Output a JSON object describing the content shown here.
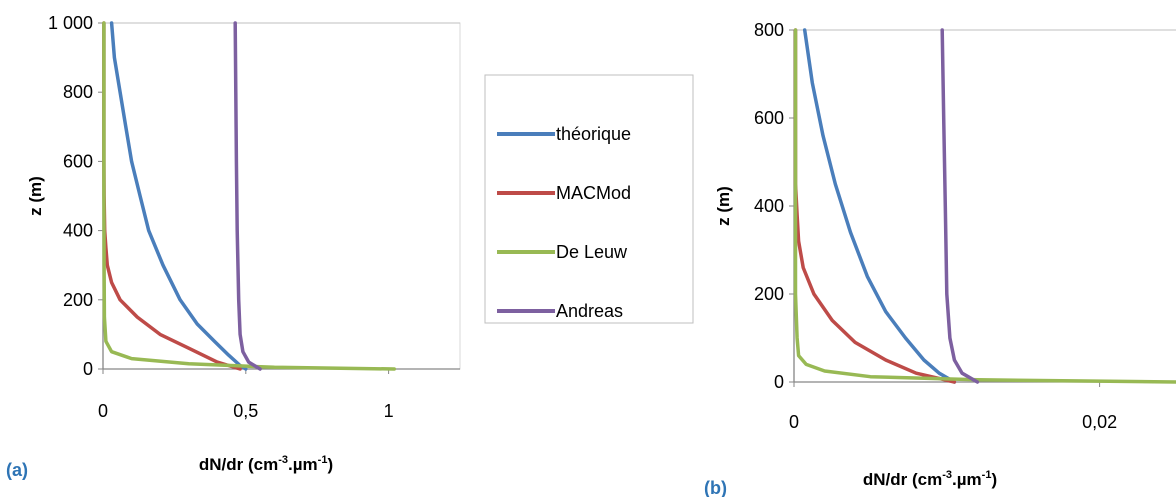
{
  "chart_data": [
    {
      "panel_label": "(a)",
      "type": "line",
      "xlabel": "dN/dr (cm-3.µm-1)",
      "ylabel": "z (m)",
      "xlim": [
        0,
        1.25
      ],
      "ylim": [
        0,
        1000
      ],
      "x_ticks": [
        0,
        0.5,
        1
      ],
      "x_tick_labels": [
        "0",
        "0,5",
        "1"
      ],
      "y_ticks": [
        0,
        200,
        400,
        600,
        800,
        1000
      ],
      "y_tick_labels": [
        "0",
        "200",
        "400",
        "600",
        "800",
        "1 000"
      ],
      "grid": "horizontal-top-only",
      "legend_position": "right",
      "series": [
        {
          "name": "théorique",
          "color": "#4a7ebb",
          "points": [
            [
              0.5,
              0
            ],
            [
              0.48,
              10
            ],
            [
              0.44,
              40
            ],
            [
              0.39,
              80
            ],
            [
              0.33,
              130
            ],
            [
              0.27,
              200
            ],
            [
              0.21,
              300
            ],
            [
              0.16,
              400
            ],
            [
              0.13,
              500
            ],
            [
              0.1,
              600
            ],
            [
              0.08,
              700
            ],
            [
              0.06,
              800
            ],
            [
              0.04,
              900
            ],
            [
              0.03,
              1000
            ]
          ]
        },
        {
          "name": "MACMod",
          "color": "#be4b48",
          "points": [
            [
              0.48,
              0
            ],
            [
              0.4,
              20
            ],
            [
              0.3,
              60
            ],
            [
              0.2,
              100
            ],
            [
              0.12,
              150
            ],
            [
              0.06,
              200
            ],
            [
              0.03,
              250
            ],
            [
              0.015,
              300
            ],
            [
              0.01,
              350
            ],
            [
              0.006,
              400
            ],
            [
              0.004,
              500
            ],
            [
              0.003,
              600
            ],
            [
              0.003,
              700
            ],
            [
              0.003,
              800
            ],
            [
              0.003,
              900
            ],
            [
              0.003,
              1000
            ]
          ]
        },
        {
          "name": "De Leuw",
          "color": "#98b954",
          "points": [
            [
              1.02,
              0
            ],
            [
              0.6,
              5
            ],
            [
              0.3,
              15
            ],
            [
              0.1,
              30
            ],
            [
              0.03,
              50
            ],
            [
              0.01,
              80
            ],
            [
              0.005,
              150
            ],
            [
              0.004,
              300
            ],
            [
              0.003,
              500
            ],
            [
              0.003,
              700
            ],
            [
              0.003,
              1000
            ]
          ]
        },
        {
          "name": "Andreas",
          "color": "#7d60a0",
          "points": [
            [
              0.55,
              0
            ],
            [
              0.51,
              20
            ],
            [
              0.49,
              50
            ],
            [
              0.48,
              100
            ],
            [
              0.475,
              200
            ],
            [
              0.47,
              400
            ],
            [
              0.467,
              600
            ],
            [
              0.465,
              800
            ],
            [
              0.463,
              1000
            ]
          ]
        }
      ]
    },
    {
      "panel_label": "(b)",
      "type": "line",
      "xlabel": "dN/dr (cm-3.µm-1)",
      "ylabel": "z (m)",
      "xlim": [
        0,
        0.025
      ],
      "ylim": [
        0,
        800
      ],
      "x_ticks": [
        0,
        0.02
      ],
      "x_tick_labels": [
        "0",
        "0,02"
      ],
      "y_ticks": [
        0,
        200,
        400,
        600,
        800
      ],
      "y_tick_labels": [
        "0",
        "200",
        "400",
        "600",
        "800"
      ],
      "grid": "horizontal-top-only",
      "series": [
        {
          "name": "théorique",
          "color": "#4a7ebb",
          "points": [
            [
              0.0105,
              0
            ],
            [
              0.0095,
              20
            ],
            [
              0.0085,
              50
            ],
            [
              0.0073,
              100
            ],
            [
              0.006,
              160
            ],
            [
              0.0048,
              240
            ],
            [
              0.0037,
              340
            ],
            [
              0.0027,
              450
            ],
            [
              0.0019,
              560
            ],
            [
              0.0012,
              680
            ],
            [
              0.0007,
              800
            ]
          ]
        },
        {
          "name": "MACMod",
          "color": "#be4b48",
          "points": [
            [
              0.0105,
              0
            ],
            [
              0.008,
              20
            ],
            [
              0.006,
              50
            ],
            [
              0.004,
              90
            ],
            [
              0.0025,
              140
            ],
            [
              0.0013,
              200
            ],
            [
              0.0006,
              260
            ],
            [
              0.0003,
              320
            ],
            [
              0.0002,
              380
            ],
            [
              0.0001,
              450
            ],
            [
              0.0001,
              600
            ],
            [
              0.0001,
              800
            ]
          ]
        },
        {
          "name": "De Leuw",
          "color": "#98b954",
          "points": [
            [
              0.025,
              0
            ],
            [
              0.012,
              5
            ],
            [
              0.005,
              12
            ],
            [
              0.002,
              25
            ],
            [
              0.0008,
              40
            ],
            [
              0.0003,
              60
            ],
            [
              0.0002,
              100
            ],
            [
              0.0001,
              200
            ],
            [
              0.0001,
              400
            ],
            [
              0.0001,
              800
            ]
          ]
        },
        {
          "name": "Andreas",
          "color": "#7d60a0",
          "points": [
            [
              0.012,
              0
            ],
            [
              0.011,
              20
            ],
            [
              0.0105,
              50
            ],
            [
              0.0102,
              100
            ],
            [
              0.01,
              200
            ],
            [
              0.0099,
              400
            ],
            [
              0.0098,
              600
            ],
            [
              0.0097,
              800
            ]
          ]
        }
      ]
    }
  ],
  "legend": {
    "items": [
      {
        "label": "théorique",
        "color": "#4a7ebb"
      },
      {
        "label": "MACMod",
        "color": "#be4b48"
      },
      {
        "label": "De Leuw",
        "color": "#98b954"
      },
      {
        "label": "Andreas",
        "color": "#7d60a0"
      }
    ]
  },
  "axis_title_parts": {
    "ylabel": "z (m)",
    "xlabel_a": "dN/dr (cm",
    "xlabel_b": ".µm",
    "exp_1": "-3",
    "exp_2": "-1"
  },
  "colors": {
    "axis": "#868686",
    "grid": "#bfbfbf",
    "panel_label": "#2e74b5"
  }
}
